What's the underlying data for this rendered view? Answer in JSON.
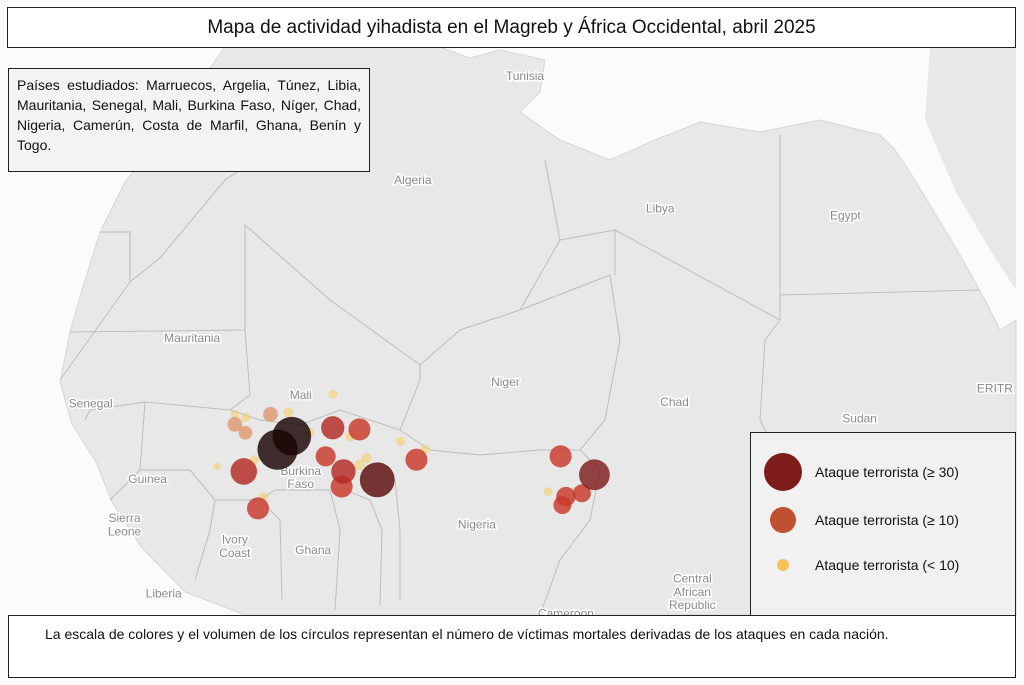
{
  "title": "Mapa de actividad yihadista en el Magreb y África Occidental, abril 2025",
  "note": "Países estudiados: Marruecos, Argelia, Túnez, Libia, Mauritania, Senegal, Mali, Burkina Faso, Níger, Chad, Nigeria, Camerún, Costa de Marfil, Ghana, Benín y Togo.",
  "caption": "La escala de colores y el volumen de los círculos representan el número de víctimas mortales derivadas de los ataques en cada nación.",
  "legend": [
    {
      "label": "Ataque terrorista (≥ 30)",
      "color": "#7e1c1c"
    },
    {
      "label": "Ataque terrorista (≥ 10)",
      "color": "#c0502f"
    },
    {
      "label": "Ataque terrorista (< 10)",
      "color": "#f5c25a"
    }
  ],
  "country_labels": [
    {
      "name": "Tunisia",
      "lon": 10,
      "lat": 34
    },
    {
      "name": "Algeria",
      "lon": 3.7,
      "lat": 27.8
    },
    {
      "name": "Libya",
      "lon": 17.6,
      "lat": 26.1
    },
    {
      "name": "Egypt",
      "lon": 28,
      "lat": 25.7
    },
    {
      "name": "Mauritania",
      "lon": -8.7,
      "lat": 18.4
    },
    {
      "name": "Mali",
      "lon": -2.6,
      "lat": 15.0
    },
    {
      "name": "Niger",
      "lon": 8.9,
      "lat": 15.8
    },
    {
      "name": "Chad",
      "lon": 18.4,
      "lat": 14.6
    },
    {
      "name": "Sudan",
      "lon": 28.8,
      "lat": 13.6
    },
    {
      "name": "ERITR",
      "lon": 36.4,
      "lat": 15.4
    },
    {
      "name": "Senegal",
      "lon": -14.4,
      "lat": 14.5
    },
    {
      "name": "Guinea",
      "lon": -11.2,
      "lat": 10.0
    },
    {
      "name": "Burkina",
      "lon": -2.6,
      "lat": 10.5
    },
    {
      "name": "Faso",
      "lon": -2.6,
      "lat": 9.7
    },
    {
      "name": "Nigeria",
      "lon": 7.3,
      "lat": 7.3
    },
    {
      "name": "Sierra",
      "lon": -12.5,
      "lat": 7.7
    },
    {
      "name": "Leone",
      "lon": -12.5,
      "lat": 6.9
    },
    {
      "name": "Ivory",
      "lon": -6.3,
      "lat": 6.4
    },
    {
      "name": "Coast",
      "lon": -6.3,
      "lat": 5.6
    },
    {
      "name": "Ghana",
      "lon": -1.9,
      "lat": 5.8
    },
    {
      "name": "Liberia",
      "lon": -10.3,
      "lat": 3.2
    },
    {
      "name": "Central",
      "lon": 19.4,
      "lat": 4.1
    },
    {
      "name": "African",
      "lon": 19.4,
      "lat": 3.3
    },
    {
      "name": "Republic",
      "lon": 19.4,
      "lat": 2.5
    },
    {
      "name": "Cameroon",
      "lon": 12.3,
      "lat": 2.0
    }
  ],
  "attacks": [
    {
      "lon": -0.8,
      "lat": 15.3,
      "victims": 3
    },
    {
      "lon": -3.3,
      "lat": 14.2,
      "victims": 4
    },
    {
      "lon": -5.7,
      "lat": 13.9,
      "victims": 3
    },
    {
      "lon": -6.3,
      "lat": 14.1,
      "victims": 3
    },
    {
      "lon": 3.0,
      "lat": 12.5,
      "victims": 3
    },
    {
      "lon": 4.4,
      "lat": 12.0,
      "victims": 3
    },
    {
      "lon": 1.1,
      "lat": 11.5,
      "victims": 4
    },
    {
      "lon": 0.7,
      "lat": 11.1,
      "victims": 4
    },
    {
      "lon": -4.7,
      "lat": 9.2,
      "victims": 3
    },
    {
      "lon": -7.3,
      "lat": 11.0,
      "victims": 2
    },
    {
      "lon": 11.3,
      "lat": 9.5,
      "victims": 3
    },
    {
      "lon": -2.1,
      "lat": 13.0,
      "victims": 4
    },
    {
      "lon": 0.2,
      "lat": 12.8,
      "victims": 4
    },
    {
      "lon": -5.2,
      "lat": 11.4,
      "victims": 3
    },
    {
      "lon": -4.3,
      "lat": 14.1,
      "victims": 8
    },
    {
      "lon": -6.3,
      "lat": 13.5,
      "victims": 8
    },
    {
      "lon": -5.7,
      "lat": 13.0,
      "victims": 7
    },
    {
      "lon": -0.8,
      "lat": 13.3,
      "victims": 20
    },
    {
      "lon": 0.7,
      "lat": 13.2,
      "victims": 18
    },
    {
      "lon": -1.2,
      "lat": 11.6,
      "victims": 15
    },
    {
      "lon": -0.2,
      "lat": 10.7,
      "victims": 22
    },
    {
      "lon": -0.3,
      "lat": 9.8,
      "victims": 18
    },
    {
      "lon": 3.9,
      "lat": 11.4,
      "victims": 18
    },
    {
      "lon": -5.0,
      "lat": 8.5,
      "victims": 18
    },
    {
      "lon": 12.0,
      "lat": 11.6,
      "victims": 18
    },
    {
      "lon": 12.3,
      "lat": 9.2,
      "victims": 14
    },
    {
      "lon": 13.2,
      "lat": 9.4,
      "victims": 12
    },
    {
      "lon": 12.1,
      "lat": 8.7,
      "victims": 12
    },
    {
      "lon": -5.8,
      "lat": 10.7,
      "victims": 26
    },
    {
      "lon": 13.9,
      "lat": 10.5,
      "victims": 35
    },
    {
      "lon": 1.7,
      "lat": 10.2,
      "victims": 45
    },
    {
      "lon": -3.1,
      "lat": 12.8,
      "victims": 55
    },
    {
      "lon": -3.9,
      "lat": 12.0,
      "victims": 60
    }
  ]
}
